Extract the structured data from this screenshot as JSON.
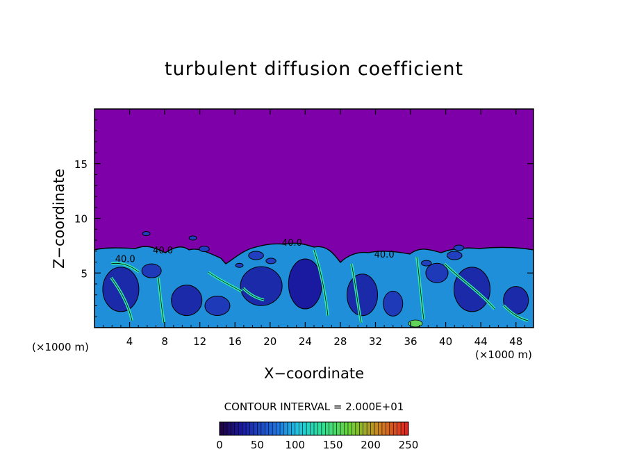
{
  "chart_data": {
    "type": "heatmap",
    "title": "turbulent diffusion coefficient",
    "xlabel": "X−coordinate",
    "ylabel": "Z−coordinate",
    "x_unit_left": "(×1000 m)",
    "x_unit_right": "(×1000 m)",
    "xlim": [
      0,
      50
    ],
    "ylim": [
      0,
      20
    ],
    "x_ticks": [
      4,
      8,
      12,
      16,
      20,
      24,
      28,
      32,
      36,
      40,
      44,
      48
    ],
    "y_ticks": [
      5,
      10,
      15
    ],
    "contour_interval_text": "CONTOUR INTERVAL = 2.000E+01",
    "contour_interval": 20,
    "contour_labels": [
      {
        "text": "40.0",
        "x": 3.5,
        "z": 6.0
      },
      {
        "text": "40.0",
        "x": 7.8,
        "z": 6.8
      },
      {
        "text": "40.0",
        "x": 22.5,
        "z": 7.5
      },
      {
        "text": "40.0",
        "x": 33.0,
        "z": 6.4
      }
    ],
    "colorbar": {
      "min": 0,
      "max": 250,
      "tick_values": [
        0,
        50,
        100,
        150,
        200,
        250
      ],
      "tick_labels": [
        "0",
        "50",
        "100",
        "150",
        "200",
        "250"
      ]
    },
    "background_value": 0,
    "turbulent_layer_top_approx": 7,
    "colors": {
      "background_purple": "#7e00a8",
      "low": "#1a1a9e",
      "mid": "#1ea0d8",
      "high": "#2ee8b0",
      "green": "#5fd35a"
    }
  }
}
